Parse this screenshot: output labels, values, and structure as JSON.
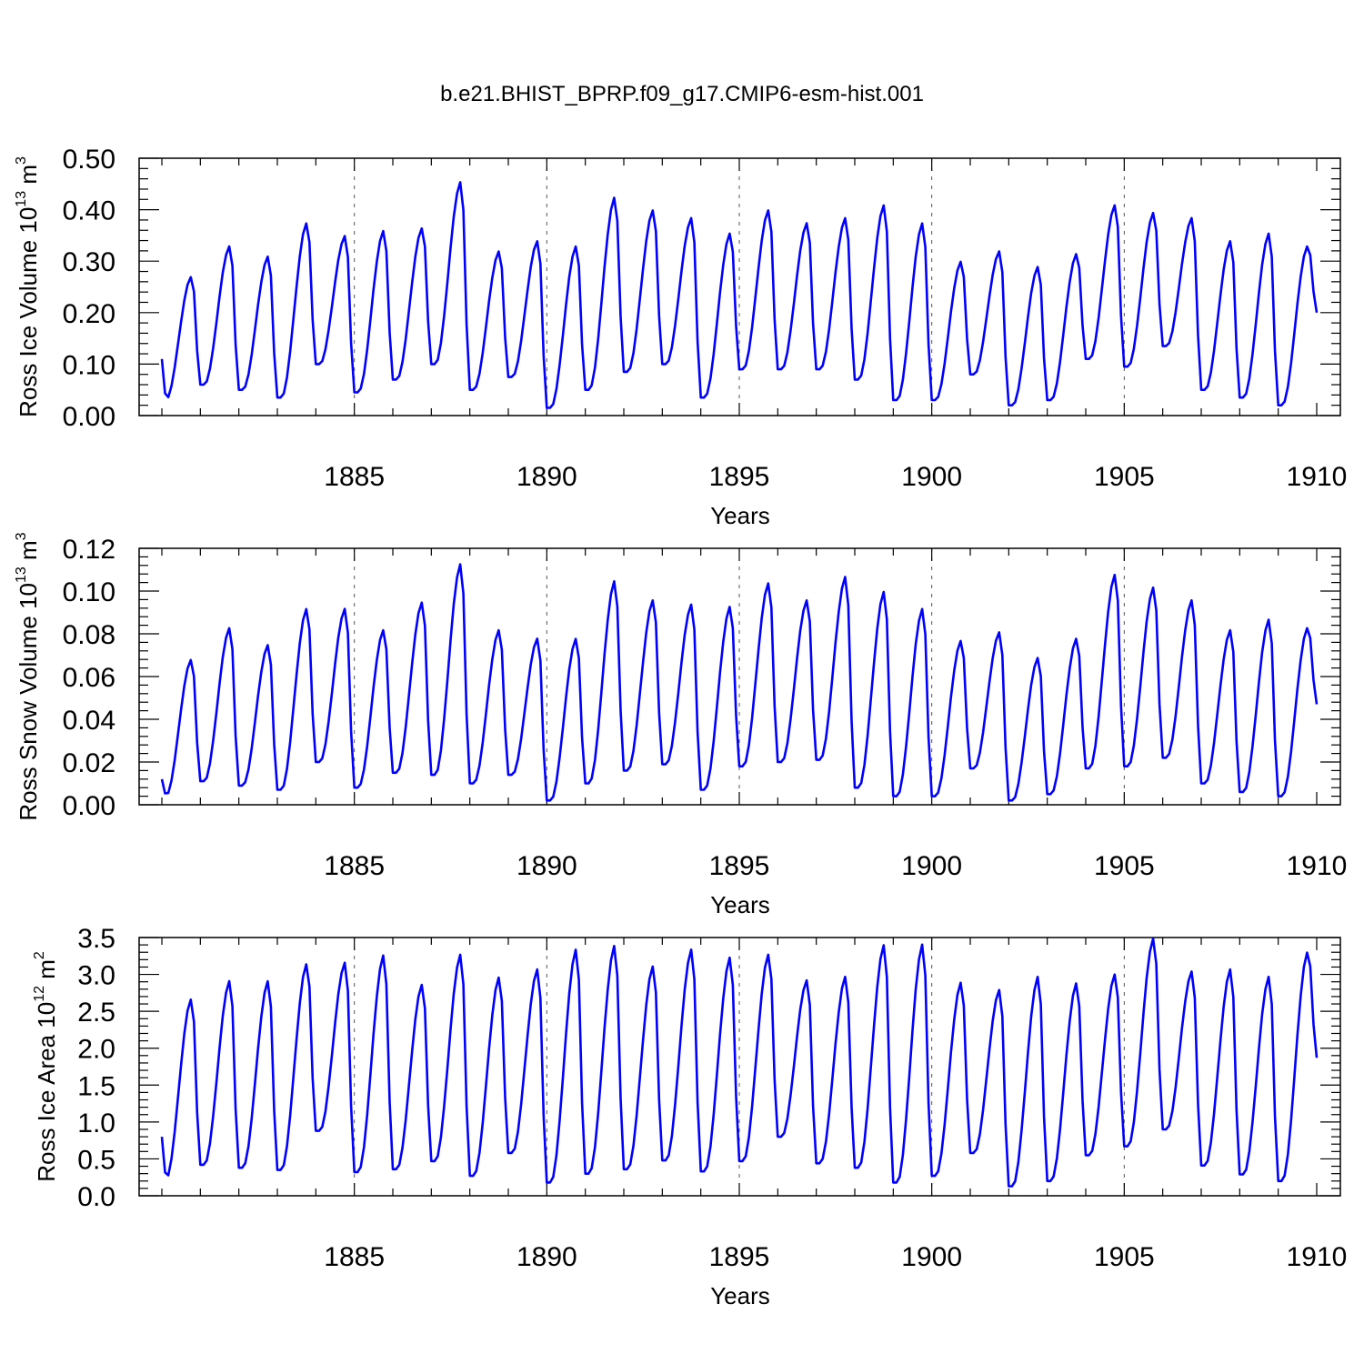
{
  "colors": {
    "series": "#0000ff",
    "axis": "#000000",
    "gridline": "#555555",
    "background": "#ffffff"
  },
  "chart_data": [
    {
      "type": "line",
      "title": "b.e21.BHIST_BPRP.f09_g17.CMIP6-esm-hist.001",
      "xlabel": "Years",
      "ylabel": "Ross Ice Volume",
      "ylabel_power": "10",
      "ylabel_exp": "13",
      "ylabel_unit": "m",
      "ylabel_unit_exp": "3",
      "xlim": [
        1880.0,
        1910.0
      ],
      "ylim": [
        0.0,
        0.5
      ],
      "x_ticks": [
        1885,
        1890,
        1895,
        1900,
        1905,
        1910
      ],
      "x_tick_labels": [
        "1885",
        "1890",
        "1895",
        "1900",
        "1905",
        "1910"
      ],
      "y_ticks": [
        0.0,
        0.1,
        0.2,
        0.3,
        0.4,
        0.5
      ],
      "y_tick_labels": [
        "0.00",
        "0.10",
        "0.20",
        "0.30",
        "0.40",
        "0.50"
      ],
      "grid": "dashed vertical lines at labeled years",
      "series": [
        {
          "name": "Ross Ice Volume",
          "minima": [
            0.03,
            0.06,
            0.05,
            0.035,
            0.1,
            0.045,
            0.07,
            0.1,
            0.05,
            0.075,
            0.015,
            0.05,
            0.085,
            0.1,
            0.035,
            0.09,
            0.09,
            0.09,
            0.07,
            0.03,
            0.03,
            0.08,
            0.02,
            0.03,
            0.11,
            0.095,
            0.135,
            0.05,
            0.035,
            0.02
          ],
          "maxima": [
            0.27,
            0.33,
            0.31,
            0.375,
            0.35,
            0.36,
            0.365,
            0.455,
            0.32,
            0.34,
            0.33,
            0.425,
            0.4,
            0.385,
            0.355,
            0.4,
            0.375,
            0.385,
            0.41,
            0.375,
            0.3,
            0.32,
            0.29,
            0.315,
            0.41,
            0.395,
            0.385,
            0.34,
            0.355,
            0.33
          ],
          "start": 0.11,
          "end": 0.2
        }
      ]
    },
    {
      "type": "line",
      "xlabel": "Years",
      "ylabel": "Ross Snow Volume",
      "ylabel_power": "10",
      "ylabel_exp": "13",
      "ylabel_unit": "m",
      "ylabel_unit_exp": "3",
      "xlim": [
        1880.0,
        1910.0
      ],
      "ylim": [
        0.0,
        0.12
      ],
      "x_ticks": [
        1885,
        1890,
        1895,
        1900,
        1905,
        1910
      ],
      "x_tick_labels": [
        "1885",
        "1890",
        "1895",
        "1900",
        "1905",
        "1910"
      ],
      "y_ticks": [
        0.0,
        0.02,
        0.04,
        0.06,
        0.08,
        0.1,
        0.12
      ],
      "y_tick_labels": [
        "0.00",
        "0.02",
        "0.04",
        "0.06",
        "0.08",
        "0.10",
        "0.12"
      ],
      "grid": "dashed vertical lines at labeled years",
      "series": [
        {
          "name": "Ross Snow Volume",
          "minima": [
            0.004,
            0.011,
            0.009,
            0.007,
            0.02,
            0.008,
            0.015,
            0.014,
            0.01,
            0.014,
            0.002,
            0.01,
            0.016,
            0.019,
            0.007,
            0.018,
            0.02,
            0.021,
            0.008,
            0.004,
            0.004,
            0.017,
            0.002,
            0.005,
            0.017,
            0.018,
            0.022,
            0.01,
            0.006,
            0.004
          ],
          "maxima": [
            0.068,
            0.083,
            0.075,
            0.092,
            0.092,
            0.082,
            0.095,
            0.113,
            0.082,
            0.078,
            0.078,
            0.105,
            0.096,
            0.094,
            0.093,
            0.104,
            0.096,
            0.107,
            0.1,
            0.092,
            0.077,
            0.081,
            0.069,
            0.078,
            0.108,
            0.102,
            0.096,
            0.082,
            0.087,
            0.083
          ],
          "start": 0.012,
          "end": 0.047
        }
      ]
    },
    {
      "type": "line",
      "xlabel": "Years",
      "ylabel": "Ross Ice Area",
      "ylabel_power": "10",
      "ylabel_exp": "12",
      "ylabel_unit": "m",
      "ylabel_unit_exp": "2",
      "xlim": [
        1880.0,
        1910.0
      ],
      "ylim": [
        0.0,
        3.5
      ],
      "x_ticks": [
        1885,
        1890,
        1895,
        1900,
        1905,
        1910
      ],
      "x_tick_labels": [
        "1885",
        "1890",
        "1895",
        "1900",
        "1905",
        "1910"
      ],
      "y_ticks": [
        0.0,
        0.5,
        1.0,
        1.5,
        2.0,
        2.5,
        3.0,
        3.5
      ],
      "y_tick_labels": [
        "0.0",
        "0.5",
        "1.0",
        "1.5",
        "2.0",
        "2.5",
        "3.0",
        "3.5"
      ],
      "grid": "dashed vertical lines at labeled years",
      "series": [
        {
          "name": "Ross Ice Area",
          "minima": [
            0.22,
            0.42,
            0.38,
            0.35,
            0.88,
            0.32,
            0.36,
            0.47,
            0.27,
            0.58,
            0.18,
            0.3,
            0.36,
            0.48,
            0.33,
            0.47,
            0.8,
            0.44,
            0.38,
            0.18,
            0.27,
            0.58,
            0.13,
            0.2,
            0.55,
            0.67,
            0.9,
            0.41,
            0.29,
            0.2
          ],
          "maxima": [
            2.67,
            2.92,
            2.92,
            3.15,
            3.17,
            3.27,
            2.87,
            3.28,
            2.97,
            3.08,
            3.35,
            3.4,
            3.12,
            3.35,
            3.24,
            3.28,
            2.93,
            2.98,
            3.41,
            3.42,
            2.9,
            2.8,
            2.98,
            2.89,
            3.01,
            3.5,
            3.05,
            3.08,
            2.98,
            3.31
          ],
          "start": 0.8,
          "end": 1.87
        }
      ]
    }
  ]
}
